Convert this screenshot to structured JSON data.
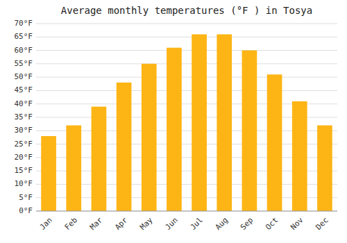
{
  "chart_data": {
    "type": "bar",
    "title": "Average monthly temperatures (°F ) in Tosya",
    "categories": [
      "Jan",
      "Feb",
      "Mar",
      "Apr",
      "May",
      "Jun",
      "Jul",
      "Aug",
      "Sep",
      "Oct",
      "Nov",
      "Dec"
    ],
    "values": [
      28,
      32,
      39,
      48,
      55,
      61,
      66,
      66,
      60,
      51,
      41,
      32
    ],
    "color": "#FDB515",
    "ylim": [
      0,
      70
    ],
    "yticks": [
      {
        "value": 0,
        "label": "0°F"
      },
      {
        "value": 5,
        "label": "5°F"
      },
      {
        "value": 10,
        "label": "10°F"
      },
      {
        "value": 15,
        "label": "15°F"
      },
      {
        "value": 20,
        "label": "20°F"
      },
      {
        "value": 25,
        "label": "25°F"
      },
      {
        "value": 30,
        "label": "30°F"
      },
      {
        "value": 35,
        "label": "35°F"
      },
      {
        "value": 40,
        "label": "40°F"
      },
      {
        "value": 45,
        "label": "45°F"
      },
      {
        "value": 50,
        "label": "50°F"
      },
      {
        "value": 55,
        "label": "55°F"
      },
      {
        "value": 60,
        "label": "60°F"
      },
      {
        "value": 65,
        "label": "65°F"
      },
      {
        "value": 70,
        "label": "70°F"
      }
    ],
    "grid": true
  }
}
